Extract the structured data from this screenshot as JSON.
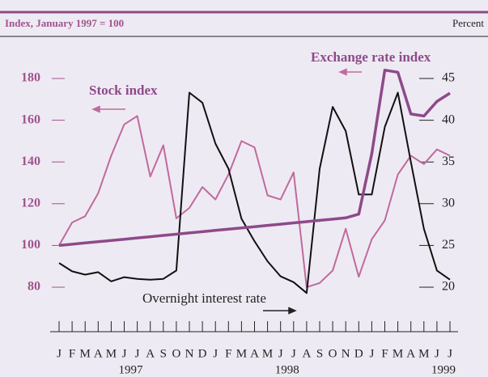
{
  "chart_data": {
    "type": "line",
    "ylabel": "Index, January 1997 = 100",
    "y2label": "Percent",
    "categories": [
      "J",
      "F",
      "M",
      "A",
      "M",
      "J",
      "J",
      "A",
      "S",
      "O",
      "N",
      "D",
      "J",
      "F",
      "M",
      "A",
      "M",
      "J",
      "J",
      "A",
      "S",
      "O",
      "N",
      "D",
      "J",
      "F",
      "M",
      "A",
      "M",
      "J",
      "J"
    ],
    "year_labels": [
      null,
      null,
      null,
      null,
      null,
      "1997",
      null,
      null,
      null,
      null,
      null,
      null,
      null,
      null,
      null,
      null,
      null,
      "1998",
      null,
      null,
      null,
      null,
      null,
      null,
      null,
      null,
      null,
      null,
      null,
      "1999",
      null
    ],
    "ylim": [
      70,
      190
    ],
    "yticks": [
      80,
      100,
      120,
      140,
      160,
      180
    ],
    "y2lim": [
      17.5,
      47.5
    ],
    "y2ticks": [
      20,
      25,
      30,
      35,
      40,
      45
    ],
    "series": [
      {
        "name": "Exchange rate index",
        "color": "#8e4a8a",
        "axis": "y",
        "values": [
          100,
          100.6,
          101.2,
          101.8,
          102.4,
          103,
          103.6,
          104.2,
          104.8,
          105.4,
          106,
          106.6,
          107.2,
          107.8,
          108.4,
          109,
          109.6,
          110.2,
          110.8,
          111.4,
          112,
          112.6,
          113.2,
          115,
          144,
          184,
          183,
          163,
          162,
          169,
          173
        ]
      },
      {
        "name": "Stock index",
        "color": "#c06a9e",
        "axis": "y",
        "values": [
          100,
          111,
          114,
          125,
          143,
          158,
          162,
          133,
          148,
          113,
          118,
          128,
          122,
          134,
          150,
          147,
          124,
          122,
          135,
          80,
          82,
          88,
          108,
          85,
          103,
          112,
          134,
          143,
          139,
          146,
          143
        ]
      },
      {
        "name": "Overnight interest rate",
        "color": "#111111",
        "axis": "y2",
        "values": [
          22.9,
          21.9,
          21.5,
          21.8,
          20.7,
          21.2,
          21,
          20.9,
          21,
          22,
          43.3,
          42.1,
          37.2,
          34.2,
          28.2,
          25.5,
          23.1,
          21.3,
          20.6,
          19.3,
          34.2,
          41.6,
          38.7,
          31.1,
          31.1,
          39.2,
          43.3,
          35,
          27,
          22,
          20.9
        ]
      }
    ]
  }
}
